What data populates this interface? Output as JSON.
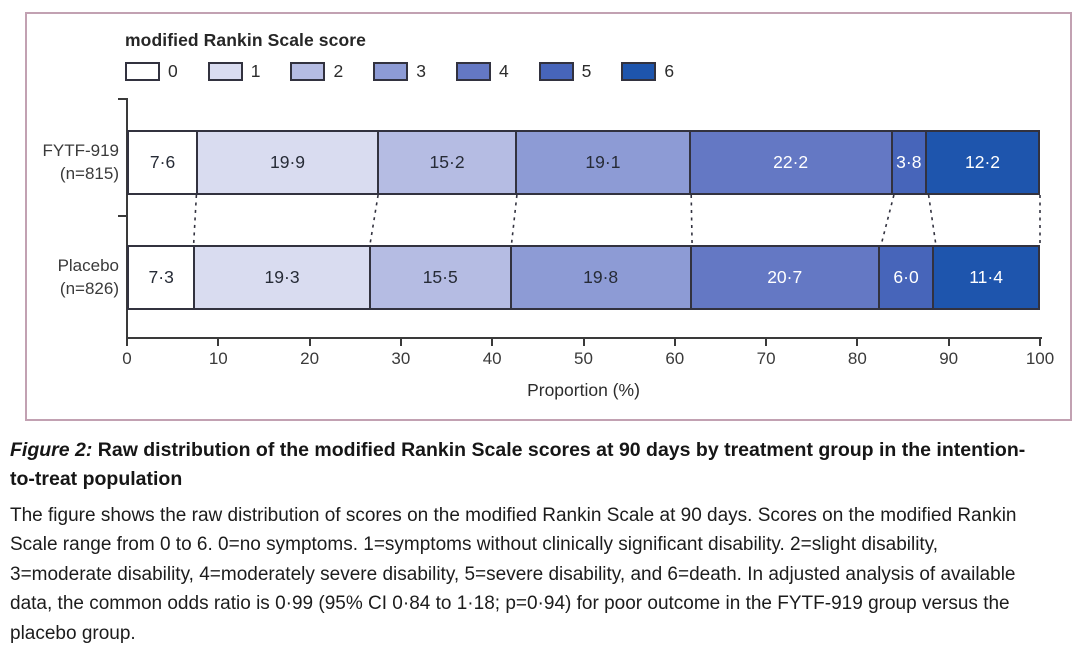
{
  "chart_data": {
    "type": "bar",
    "variant": "horizontal-stacked",
    "legend_title": "modified Rankin Scale score",
    "legend_position": "top-left",
    "xlabel": "Proportion (%)",
    "xlim": [
      0,
      100
    ],
    "xticks": [
      0,
      10,
      20,
      30,
      40,
      50,
      60,
      70,
      80,
      90,
      100
    ],
    "series": [
      {
        "name": "0",
        "color": "#ffffff",
        "label_color": "#262b36"
      },
      {
        "name": "1",
        "color": "#d9dcf0",
        "label_color": "#262b36"
      },
      {
        "name": "2",
        "color": "#b5bce3",
        "label_color": "#262b36"
      },
      {
        "name": "3",
        "color": "#8d9bd5",
        "label_color": "#262b36"
      },
      {
        "name": "4",
        "color": "#6478c4",
        "label_color": "#ffffff"
      },
      {
        "name": "5",
        "color": "#4765ba",
        "label_color": "#ffffff"
      },
      {
        "name": "6",
        "color": "#1e55ad",
        "label_color": "#ffffff"
      }
    ],
    "rows": [
      {
        "label_lines": [
          "FYTF-919",
          "(n=815)"
        ],
        "values": [
          7.6,
          19.9,
          15.2,
          19.1,
          22.2,
          3.8,
          12.2
        ],
        "display": [
          "7·6",
          "19·9",
          "15·2",
          "19·1",
          "22·2",
          "3·8",
          "12·2"
        ]
      },
      {
        "label_lines": [
          "Placebo",
          "(n=826)"
        ],
        "values": [
          7.3,
          19.3,
          15.5,
          19.8,
          20.7,
          6.0,
          11.4
        ],
        "display": [
          "7·3",
          "19·3",
          "15·5",
          "19·8",
          "20·7",
          "6·0",
          "11·4"
        ]
      }
    ]
  },
  "caption": {
    "label": "Figure 2:",
    "title": " Raw distribution of the modified Rankin Scale scores at 90 days by treatment group in the intention-to-treat population",
    "body": "The figure shows the raw distribution of scores on the modified Rankin Scale at 90 days. Scores on the modified Rankin Scale range from 0 to 6. 0=no symptoms. 1=symptoms without clinically significant disability. 2=slight disability, 3=moderate disability, 4=moderately severe disability, 5=severe disability, and 6=death. In adjusted analysis of available data, the common odds ratio is 0·99 (95% CI 0·84 to 1·18; p=0·94) for poor outcome in the FYTF-919 group versus the placebo group.",
    "odds_ratio": "0·99",
    "ci": "95% CI 0·84 to 1·18",
    "p_value": "p=0·94"
  },
  "colors": {
    "panel_border": "#c2a1b2",
    "axis": "#3a3a3a",
    "segment_border": "#32323f"
  }
}
